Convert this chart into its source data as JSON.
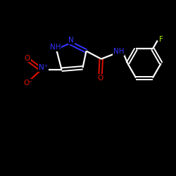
{
  "background_color": "#000000",
  "atom_colors": {
    "N": "#3333ff",
    "O": "#dd1100",
    "F": "#aaee00",
    "C": "#ffffff",
    "H": "#ffffff"
  },
  "bond_color": "#ffffff",
  "figsize": [
    2.5,
    2.5
  ],
  "dpi": 100,
  "xlim": [
    0,
    10
  ],
  "ylim": [
    0,
    10
  ]
}
